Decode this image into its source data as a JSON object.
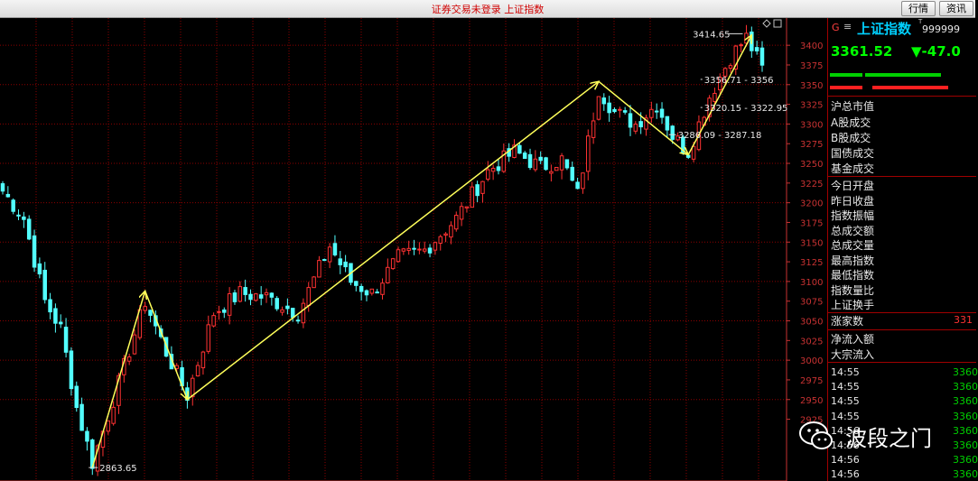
{
  "window": {
    "title": "证券交易未登录  上证指数",
    "buttons": [
      "行情",
      "资讯"
    ]
  },
  "index": {
    "code_prefix": "G",
    "menu_glyph": "≡",
    "name": "上证指数",
    "superscript": "T",
    "code": "999999",
    "price": "3361.52",
    "change": "▼-47.0"
  },
  "panel_labels_a": [
    "沪总市值",
    "A股成交",
    "B股成交",
    "国债成交",
    "基金成交"
  ],
  "panel_labels_b": [
    "今日开盘",
    "昨日收盘",
    "指数振幅",
    "总成交额",
    "总成交量",
    "最高指数",
    "最低指数",
    "指数量比",
    "上证换手"
  ],
  "advance": {
    "label": "涨家数",
    "value": "331"
  },
  "panel_labels_c": [
    "净流入额",
    "大宗流入"
  ],
  "ticks": [
    {
      "time": "14:55",
      "price": "3360"
    },
    {
      "time": "14:55",
      "price": "3360"
    },
    {
      "time": "14:55",
      "price": "3360"
    },
    {
      "time": "14:55",
      "price": "3360"
    },
    {
      "time": "14:56",
      "price": "3360"
    },
    {
      "time": "14:56",
      "price": "3360"
    },
    {
      "time": "14:56",
      "price": "3360"
    },
    {
      "time": "14:56",
      "price": "3360"
    }
  ],
  "watermark": {
    "text": "波段之门"
  },
  "colors": {
    "up": "#ff3232",
    "down": "#52ffff",
    "trend": "#ffff5a",
    "grid": "#8b0000",
    "axis": "#c83232",
    "price_green": "#00ff00",
    "index_cyan": "#00d0ff"
  },
  "chart_data": {
    "type": "candlestick",
    "y_axis_ticks": [
      2925,
      2950,
      2975,
      3000,
      3025,
      3050,
      3075,
      3100,
      3125,
      3150,
      3175,
      3200,
      3225,
      3250,
      3275,
      3300,
      3325,
      3350,
      3375,
      3400
    ],
    "ylim": [
      2850,
      3430
    ],
    "n_bars": 145,
    "trend_lines": [
      {
        "from": {
          "bar": 17,
          "value": 2863.65
        },
        "to": {
          "bar": 27,
          "value": 3088
        }
      },
      {
        "from": {
          "bar": 27,
          "value": 3088
        },
        "to": {
          "bar": 35,
          "value": 2950
        }
      },
      {
        "from": {
          "bar": 35,
          "value": 2950
        },
        "to": {
          "bar": 113,
          "value": 3354
        }
      },
      {
        "from": {
          "bar": 113,
          "value": 3354
        },
        "to": {
          "bar": 130,
          "value": 3261
        }
      },
      {
        "from": {
          "bar": 130,
          "value": 3261
        },
        "to": {
          "bar": 142,
          "value": 3413
        }
      }
    ],
    "annotations": [
      {
        "text": "2863.65",
        "bar": 17,
        "value": 2863.65
      },
      {
        "text": "3414.65",
        "bar": 141,
        "value": 3414.65
      },
      {
        "text": "3356.71 - 3356",
        "bar": 133,
        "value": 3356.71
      },
      {
        "text": "3320.15 - 3322.95",
        "bar": 133,
        "value": 3321
      },
      {
        "text": "3286.09 - 3287.18",
        "bar": 127,
        "value": 3286.5
      }
    ],
    "anchors": [
      {
        "bar": 0,
        "value": 3215
      },
      {
        "bar": 4,
        "value": 3180
      },
      {
        "bar": 8,
        "value": 3075
      },
      {
        "bar": 11,
        "value": 3040
      },
      {
        "bar": 14,
        "value": 2940
      },
      {
        "bar": 17,
        "value": 2870
      },
      {
        "bar": 21,
        "value": 2950
      },
      {
        "bar": 27,
        "value": 3075
      },
      {
        "bar": 31,
        "value": 3010
      },
      {
        "bar": 35,
        "value": 2955
      },
      {
        "bar": 40,
        "value": 3060
      },
      {
        "bar": 45,
        "value": 3085
      },
      {
        "bar": 50,
        "value": 3080
      },
      {
        "bar": 56,
        "value": 3060
      },
      {
        "bar": 62,
        "value": 3145
      },
      {
        "bar": 66,
        "value": 3100
      },
      {
        "bar": 70,
        "value": 3085
      },
      {
        "bar": 75,
        "value": 3130
      },
      {
        "bar": 80,
        "value": 3140
      },
      {
        "bar": 86,
        "value": 3180
      },
      {
        "bar": 92,
        "value": 3240
      },
      {
        "bar": 97,
        "value": 3265
      },
      {
        "bar": 102,
        "value": 3245
      },
      {
        "bar": 106,
        "value": 3255
      },
      {
        "bar": 109,
        "value": 3210
      },
      {
        "bar": 113,
        "value": 3345
      },
      {
        "bar": 116,
        "value": 3315
      },
      {
        "bar": 120,
        "value": 3300
      },
      {
        "bar": 124,
        "value": 3325
      },
      {
        "bar": 127,
        "value": 3285
      },
      {
        "bar": 130,
        "value": 3265
      },
      {
        "bar": 134,
        "value": 3335
      },
      {
        "bar": 138,
        "value": 3385
      },
      {
        "bar": 141,
        "value": 3410
      },
      {
        "bar": 144,
        "value": 3370
      }
    ]
  }
}
